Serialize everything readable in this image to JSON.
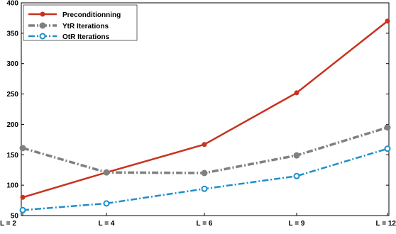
{
  "chart_data": {
    "type": "line",
    "categories": [
      "L = 2",
      "L = 4",
      "L = 6",
      "L = 9",
      "L = 12"
    ],
    "ylim": [
      50,
      400
    ],
    "yticks": [
      50,
      100,
      150,
      200,
      250,
      300,
      350,
      400
    ],
    "grid": false,
    "legend_position": "top-left",
    "series": [
      {
        "name": "Preconditionning",
        "values": [
          80,
          121,
          167,
          252,
          370
        ],
        "color": "#c8321e",
        "style": "solid"
      },
      {
        "name": "YtR Iterations",
        "values": [
          161,
          121,
          120,
          149,
          195
        ],
        "color": "#808080",
        "style": "dash-dot"
      },
      {
        "name": "OtR Iterations",
        "values": [
          59,
          70,
          94,
          115,
          160
        ],
        "color": "#1f8fc8",
        "style": "dash-dot"
      }
    ]
  }
}
